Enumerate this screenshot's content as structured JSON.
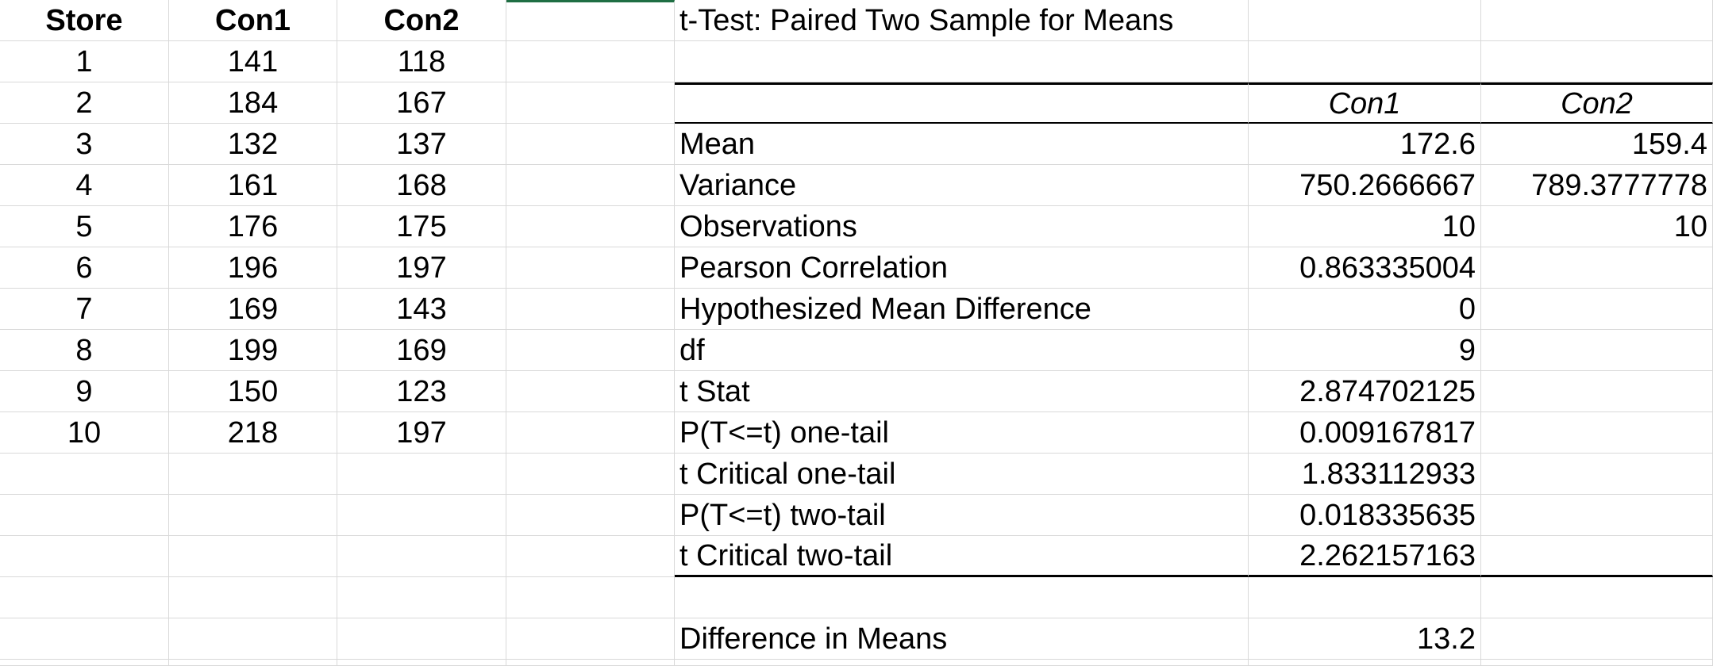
{
  "data_table": {
    "headers": [
      "Store",
      "Con1",
      "Con2"
    ],
    "rows": [
      [
        "1",
        "141",
        "118"
      ],
      [
        "2",
        "184",
        "167"
      ],
      [
        "3",
        "132",
        "137"
      ],
      [
        "4",
        "161",
        "168"
      ],
      [
        "5",
        "176",
        "175"
      ],
      [
        "6",
        "196",
        "197"
      ],
      [
        "7",
        "169",
        "143"
      ],
      [
        "8",
        "199",
        "169"
      ],
      [
        "9",
        "150",
        "123"
      ],
      [
        "10",
        "218",
        "197"
      ]
    ]
  },
  "analysis": {
    "title": "t-Test: Paired Two Sample for Means",
    "col_headers": [
      "Con1",
      "Con2"
    ],
    "rows": [
      {
        "label": "Mean",
        "v1": "172.6",
        "v2": "159.4"
      },
      {
        "label": "Variance",
        "v1": "750.2666667",
        "v2": "789.3777778"
      },
      {
        "label": "Observations",
        "v1": "10",
        "v2": "10"
      },
      {
        "label": "Pearson Correlation",
        "v1": "0.863335004",
        "v2": ""
      },
      {
        "label": "Hypothesized Mean Difference",
        "v1": "0",
        "v2": ""
      },
      {
        "label": "df",
        "v1": "9",
        "v2": ""
      },
      {
        "label": "t Stat",
        "v1": "2.874702125",
        "v2": ""
      },
      {
        "label": "P(T<=t) one-tail",
        "v1": "0.009167817",
        "v2": ""
      },
      {
        "label": "t Critical one-tail",
        "v1": "1.833112933",
        "v2": ""
      },
      {
        "label": "P(T<=t) two-tail",
        "v1": "0.018335635",
        "v2": ""
      },
      {
        "label": "t Critical two-tail",
        "v1": "2.262157163",
        "v2": ""
      }
    ],
    "difference": {
      "label": "Difference in Means",
      "value": "13.2"
    }
  },
  "colors": {
    "gridline": "#d9d9d9",
    "selection_accent": "#1f6e43"
  }
}
